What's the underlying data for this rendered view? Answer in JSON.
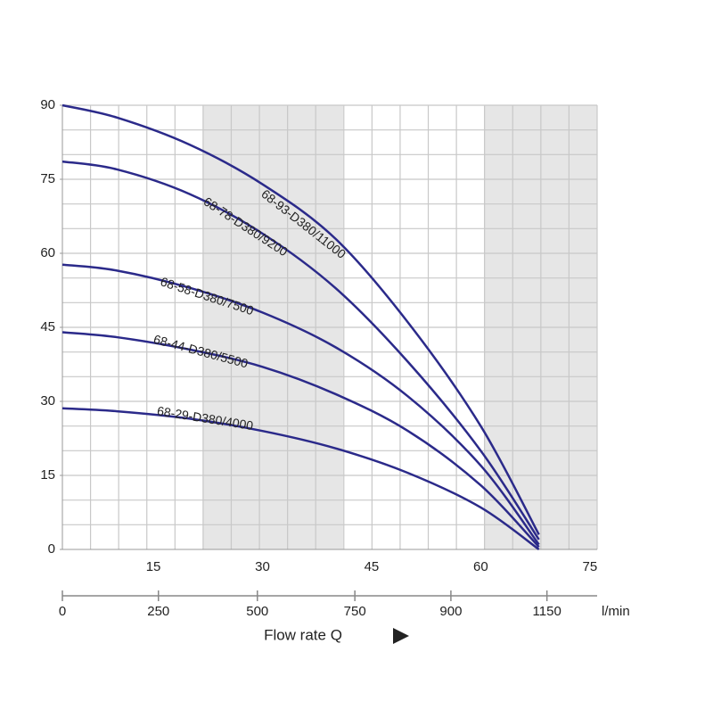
{
  "chart_data": {
    "type": "line",
    "x_label": "Flow rate Q",
    "x2_unit": "l/min",
    "xlim": [
      2.5,
      76
    ],
    "ylim": [
      0,
      90
    ],
    "xticks": [
      15,
      30,
      45,
      60,
      75
    ],
    "yticks": [
      0,
      15,
      30,
      45,
      60,
      75,
      90
    ],
    "x2ticks": [
      {
        "value": 2.5,
        "label": "0"
      },
      {
        "value": 15.7,
        "label": "250"
      },
      {
        "value": 29.3,
        "label": "500"
      },
      {
        "value": 42.7,
        "label": "750"
      },
      {
        "value": 55.9,
        "label": "900"
      },
      {
        "value": 69.1,
        "label": "1150"
      }
    ],
    "x": [
      2.5,
      10,
      20,
      30,
      40,
      50,
      60,
      68
    ],
    "series": [
      {
        "name": "68-93-D380/11000",
        "color": "#2b2a8a",
        "values": [
          90,
          87.5,
          82,
          74,
          63,
          46,
          25,
          3
        ]
      },
      {
        "name": "68-78-D380/9200",
        "color": "#2b2a8a",
        "values": [
          78.6,
          77,
          72,
          64,
          53,
          38,
          20,
          2
        ]
      },
      {
        "name": "68-58-D380/7500",
        "color": "#2b2a8a",
        "values": [
          57.7,
          56.5,
          53,
          48,
          41,
          31,
          17,
          1
        ]
      },
      {
        "name": "68-44-D380/5500",
        "color": "#2b2a8a",
        "values": [
          44,
          43,
          40.5,
          37,
          31.5,
          24,
          13,
          0.5
        ]
      },
      {
        "name": "68-29-D380/4000",
        "color": "#2b2a8a",
        "values": [
          28.6,
          28,
          26.5,
          24,
          20.5,
          15.5,
          8.5,
          0
        ]
      }
    ]
  }
}
